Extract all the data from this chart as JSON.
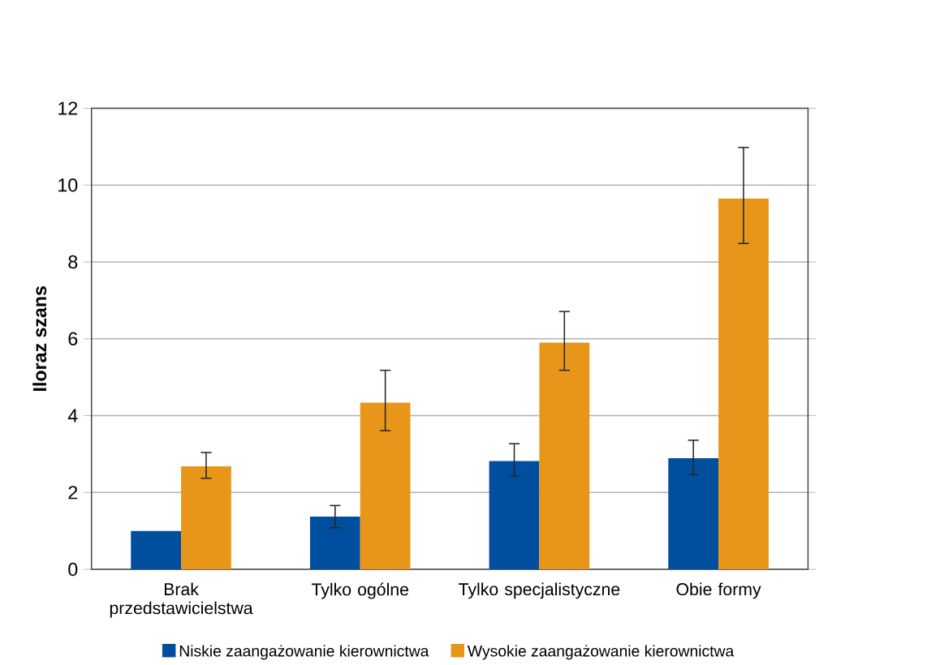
{
  "chart_data": {
    "type": "bar",
    "ylabel": "Iloraz szans",
    "categories": [
      "Brak przedstawicielstwa",
      "Tylko ogólne",
      "Tylko specjalistyczne",
      "Obie formy"
    ],
    "series": [
      {
        "name": "Niskie zaangażowanie kierownictwa",
        "color": "#004f9f",
        "values": [
          1.0,
          1.37,
          2.82,
          2.89
        ],
        "errors": [
          null,
          [
            1.08,
            1.66
          ],
          [
            2.42,
            3.27
          ],
          [
            2.46,
            3.36
          ]
        ]
      },
      {
        "name": "Wysokie zaangażowanie kierownictwa",
        "color": "#e8961a",
        "values": [
          2.68,
          4.34,
          5.9,
          9.65
        ],
        "errors": [
          [
            2.37,
            3.04
          ],
          [
            3.61,
            5.18
          ],
          [
            5.18,
            6.71
          ],
          [
            8.48,
            10.98
          ]
        ]
      }
    ],
    "ylim": [
      0,
      12
    ],
    "yticks": [
      0,
      2,
      4,
      6,
      8,
      10,
      12
    ],
    "grid": "y",
    "legend": "bottom"
  }
}
